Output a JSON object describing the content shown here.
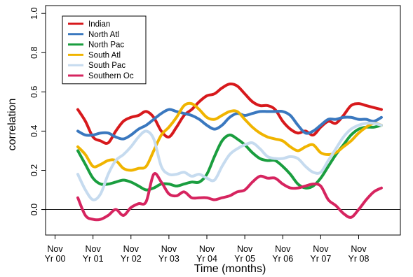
{
  "chart_data": {
    "type": "line",
    "title": "",
    "xlabel": "Time (months)",
    "ylabel": "correlation",
    "ylim": [
      -0.13,
      1.04
    ],
    "xlim": [
      -0.25,
      9.1
    ],
    "yticks": [
      0.0,
      0.2,
      0.4,
      0.6,
      0.8,
      1.0
    ],
    "ytick_labels": [
      "0.0",
      "0.2",
      "0.4",
      "0.6",
      "0.8",
      "1.0"
    ],
    "xtick_labels": [
      {
        "line1": "Nov",
        "line2": "Yr 00"
      },
      {
        "line1": "Nov",
        "line2": "Yr 01"
      },
      {
        "line1": "Nov",
        "line2": "Yr 02"
      },
      {
        "line1": "Nov",
        "line2": "Yr 03"
      },
      {
        "line1": "Nov",
        "line2": "Yr 04"
      },
      {
        "line1": "Nov",
        "line2": "Yr 05"
      },
      {
        "line1": "Nov",
        "line2": "Yr 06"
      },
      {
        "line1": "Nov",
        "line2": "Yr 07"
      },
      {
        "line1": "Nov",
        "line2": "Yr 08"
      }
    ],
    "reference_line_y": 0.0,
    "legend_position": "top-left",
    "grid": false,
    "x": [
      0.6,
      0.8,
      1.0,
      1.2,
      1.4,
      1.6,
      1.8,
      2.0,
      2.2,
      2.4,
      2.6,
      2.8,
      3.0,
      3.2,
      3.4,
      3.6,
      3.8,
      4.0,
      4.2,
      4.4,
      4.6,
      4.8,
      5.0,
      5.2,
      5.4,
      5.6,
      5.8,
      6.0,
      6.2,
      6.4,
      6.6,
      6.8,
      7.0,
      7.2,
      7.4,
      7.6,
      7.8,
      8.0,
      8.2,
      8.4,
      8.6
    ],
    "series": [
      {
        "name": "Indian",
        "color": "#d7191c",
        "values": [
          0.51,
          0.45,
          0.37,
          0.35,
          0.34,
          0.4,
          0.45,
          0.47,
          0.48,
          0.5,
          0.47,
          0.4,
          0.37,
          0.42,
          0.48,
          0.51,
          0.55,
          0.58,
          0.59,
          0.62,
          0.64,
          0.63,
          0.59,
          0.55,
          0.53,
          0.53,
          0.51,
          0.45,
          0.41,
          0.39,
          0.4,
          0.38,
          0.42,
          0.45,
          0.44,
          0.48,
          0.53,
          0.54,
          0.53,
          0.52,
          0.51
        ]
      },
      {
        "name": "North Atl",
        "color": "#3a78bf",
        "values": [
          0.4,
          0.38,
          0.38,
          0.39,
          0.39,
          0.37,
          0.36,
          0.38,
          0.41,
          0.43,
          0.46,
          0.49,
          0.51,
          0.5,
          0.49,
          0.48,
          0.46,
          0.43,
          0.41,
          0.43,
          0.47,
          0.49,
          0.48,
          0.49,
          0.5,
          0.5,
          0.5,
          0.5,
          0.48,
          0.43,
          0.39,
          0.4,
          0.43,
          0.46,
          0.46,
          0.47,
          0.47,
          0.46,
          0.46,
          0.45,
          0.47
        ]
      },
      {
        "name": "North Pac",
        "color": "#1a9e3f",
        "values": [
          0.3,
          0.23,
          0.16,
          0.13,
          0.13,
          0.14,
          0.15,
          0.14,
          0.12,
          0.1,
          0.11,
          0.13,
          0.13,
          0.12,
          0.13,
          0.14,
          0.14,
          0.18,
          0.27,
          0.35,
          0.38,
          0.36,
          0.33,
          0.29,
          0.26,
          0.25,
          0.25,
          0.22,
          0.18,
          0.13,
          0.11,
          0.12,
          0.16,
          0.22,
          0.28,
          0.33,
          0.38,
          0.41,
          0.42,
          0.42,
          0.43
        ]
      },
      {
        "name": "South Atl",
        "color": "#f0b400",
        "values": [
          0.32,
          0.28,
          0.22,
          0.23,
          0.25,
          0.25,
          0.21,
          0.2,
          0.21,
          0.22,
          0.3,
          0.38,
          0.42,
          0.47,
          0.53,
          0.54,
          0.51,
          0.47,
          0.46,
          0.48,
          0.5,
          0.5,
          0.46,
          0.42,
          0.39,
          0.37,
          0.36,
          0.35,
          0.32,
          0.3,
          0.32,
          0.33,
          0.29,
          0.28,
          0.29,
          0.32,
          0.35,
          0.39,
          0.42,
          0.44,
          0.43
        ]
      },
      {
        "name": "South Pac",
        "color": "#c6dbef",
        "values": [
          0.18,
          0.1,
          0.05,
          0.08,
          0.18,
          0.25,
          0.28,
          0.32,
          0.37,
          0.4,
          0.36,
          0.22,
          0.18,
          0.18,
          0.19,
          0.17,
          0.18,
          0.16,
          0.15,
          0.22,
          0.28,
          0.31,
          0.33,
          0.34,
          0.31,
          0.27,
          0.26,
          0.26,
          0.27,
          0.26,
          0.22,
          0.19,
          0.19,
          0.25,
          0.31,
          0.37,
          0.41,
          0.43,
          0.44,
          0.44,
          0.43
        ]
      },
      {
        "name": "Southern Oc",
        "color": "#d6245f",
        "values": [
          0.06,
          -0.03,
          -0.05,
          -0.05,
          -0.03,
          0.0,
          -0.03,
          0.01,
          0.03,
          0.04,
          0.18,
          0.14,
          0.08,
          0.07,
          0.09,
          0.06,
          0.06,
          0.06,
          0.05,
          0.06,
          0.07,
          0.09,
          0.1,
          0.14,
          0.17,
          0.16,
          0.16,
          0.13,
          0.11,
          0.11,
          0.12,
          0.13,
          0.12,
          0.05,
          0.02,
          -0.02,
          -0.04,
          0.0,
          0.05,
          0.09,
          0.11
        ]
      }
    ]
  }
}
